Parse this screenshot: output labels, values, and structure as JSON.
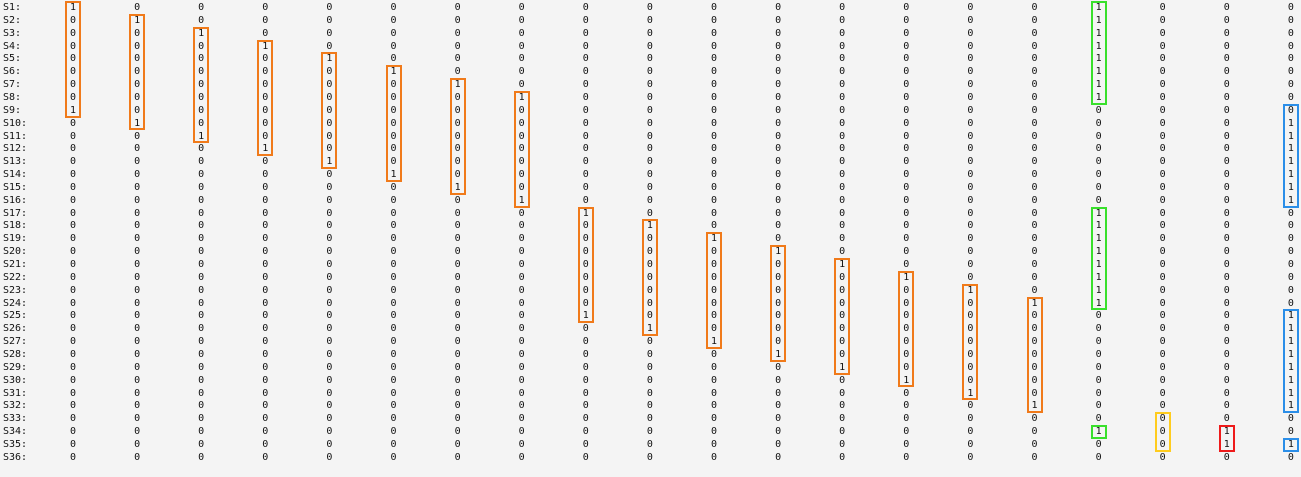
{
  "matrix": {
    "rows": [
      {
        "label": "S1:",
        "values": [
          "1",
          "0",
          "0",
          "0",
          "0",
          "0",
          "0",
          "0",
          "0",
          "0",
          "0",
          "0",
          "0",
          "0",
          "0",
          "0",
          "1",
          "0",
          "0",
          "0"
        ]
      },
      {
        "label": "S2:",
        "values": [
          "0",
          "1",
          "0",
          "0",
          "0",
          "0",
          "0",
          "0",
          "0",
          "0",
          "0",
          "0",
          "0",
          "0",
          "0",
          "0",
          "1",
          "0",
          "0",
          "0"
        ]
      },
      {
        "label": "S3:",
        "values": [
          "0",
          "0",
          "1",
          "0",
          "0",
          "0",
          "0",
          "0",
          "0",
          "0",
          "0",
          "0",
          "0",
          "0",
          "0",
          "0",
          "1",
          "0",
          "0",
          "0"
        ]
      },
      {
        "label": "S4:",
        "values": [
          "0",
          "0",
          "0",
          "1",
          "0",
          "0",
          "0",
          "0",
          "0",
          "0",
          "0",
          "0",
          "0",
          "0",
          "0",
          "0",
          "1",
          "0",
          "0",
          "0"
        ]
      },
      {
        "label": "S5:",
        "values": [
          "0",
          "0",
          "0",
          "0",
          "1",
          "0",
          "0",
          "0",
          "0",
          "0",
          "0",
          "0",
          "0",
          "0",
          "0",
          "0",
          "1",
          "0",
          "0",
          "0"
        ]
      },
      {
        "label": "S6:",
        "values": [
          "0",
          "0",
          "0",
          "0",
          "0",
          "1",
          "0",
          "0",
          "0",
          "0",
          "0",
          "0",
          "0",
          "0",
          "0",
          "0",
          "1",
          "0",
          "0",
          "0"
        ]
      },
      {
        "label": "S7:",
        "values": [
          "0",
          "0",
          "0",
          "0",
          "0",
          "0",
          "1",
          "0",
          "0",
          "0",
          "0",
          "0",
          "0",
          "0",
          "0",
          "0",
          "1",
          "0",
          "0",
          "0"
        ]
      },
      {
        "label": "S8:",
        "values": [
          "0",
          "0",
          "0",
          "0",
          "0",
          "0",
          "0",
          "1",
          "0",
          "0",
          "0",
          "0",
          "0",
          "0",
          "0",
          "0",
          "1",
          "0",
          "0",
          "0"
        ]
      },
      {
        "label": "S9:",
        "values": [
          "1",
          "0",
          "0",
          "0",
          "0",
          "0",
          "0",
          "0",
          "0",
          "0",
          "0",
          "0",
          "0",
          "0",
          "0",
          "0",
          "0",
          "0",
          "0",
          "0"
        ]
      },
      {
        "label": "S10:",
        "values": [
          "0",
          "1",
          "0",
          "0",
          "0",
          "0",
          "0",
          "0",
          "0",
          "0",
          "0",
          "0",
          "0",
          "0",
          "0",
          "0",
          "0",
          "0",
          "0",
          "1"
        ]
      },
      {
        "label": "S11:",
        "values": [
          "0",
          "0",
          "1",
          "0",
          "0",
          "0",
          "0",
          "0",
          "0",
          "0",
          "0",
          "0",
          "0",
          "0",
          "0",
          "0",
          "0",
          "0",
          "0",
          "1"
        ]
      },
      {
        "label": "S12:",
        "values": [
          "0",
          "0",
          "0",
          "1",
          "0",
          "0",
          "0",
          "0",
          "0",
          "0",
          "0",
          "0",
          "0",
          "0",
          "0",
          "0",
          "0",
          "0",
          "0",
          "1"
        ]
      },
      {
        "label": "S13:",
        "values": [
          "0",
          "0",
          "0",
          "0",
          "1",
          "0",
          "0",
          "0",
          "0",
          "0",
          "0",
          "0",
          "0",
          "0",
          "0",
          "0",
          "0",
          "0",
          "0",
          "1"
        ]
      },
      {
        "label": "S14:",
        "values": [
          "0",
          "0",
          "0",
          "0",
          "0",
          "1",
          "0",
          "0",
          "0",
          "0",
          "0",
          "0",
          "0",
          "0",
          "0",
          "0",
          "0",
          "0",
          "0",
          "1"
        ]
      },
      {
        "label": "S15:",
        "values": [
          "0",
          "0",
          "0",
          "0",
          "0",
          "0",
          "1",
          "0",
          "0",
          "0",
          "0",
          "0",
          "0",
          "0",
          "0",
          "0",
          "0",
          "0",
          "0",
          "1"
        ]
      },
      {
        "label": "S16:",
        "values": [
          "0",
          "0",
          "0",
          "0",
          "0",
          "0",
          "0",
          "1",
          "0",
          "0",
          "0",
          "0",
          "0",
          "0",
          "0",
          "0",
          "0",
          "0",
          "0",
          "1"
        ]
      },
      {
        "label": "S17:",
        "values": [
          "0",
          "0",
          "0",
          "0",
          "0",
          "0",
          "0",
          "0",
          "1",
          "0",
          "0",
          "0",
          "0",
          "0",
          "0",
          "0",
          "1",
          "0",
          "0",
          "0"
        ]
      },
      {
        "label": "S18:",
        "values": [
          "0",
          "0",
          "0",
          "0",
          "0",
          "0",
          "0",
          "0",
          "0",
          "1",
          "0",
          "0",
          "0",
          "0",
          "0",
          "0",
          "1",
          "0",
          "0",
          "0"
        ]
      },
      {
        "label": "S19:",
        "values": [
          "0",
          "0",
          "0",
          "0",
          "0",
          "0",
          "0",
          "0",
          "0",
          "0",
          "1",
          "0",
          "0",
          "0",
          "0",
          "0",
          "1",
          "0",
          "0",
          "0"
        ]
      },
      {
        "label": "S20:",
        "values": [
          "0",
          "0",
          "0",
          "0",
          "0",
          "0",
          "0",
          "0",
          "0",
          "0",
          "0",
          "1",
          "0",
          "0",
          "0",
          "0",
          "1",
          "0",
          "0",
          "0"
        ]
      },
      {
        "label": "S21:",
        "values": [
          "0",
          "0",
          "0",
          "0",
          "0",
          "0",
          "0",
          "0",
          "0",
          "0",
          "0",
          "0",
          "1",
          "0",
          "0",
          "0",
          "1",
          "0",
          "0",
          "0"
        ]
      },
      {
        "label": "S22:",
        "values": [
          "0",
          "0",
          "0",
          "0",
          "0",
          "0",
          "0",
          "0",
          "0",
          "0",
          "0",
          "0",
          "0",
          "1",
          "0",
          "0",
          "1",
          "0",
          "0",
          "0"
        ]
      },
      {
        "label": "S23:",
        "values": [
          "0",
          "0",
          "0",
          "0",
          "0",
          "0",
          "0",
          "0",
          "0",
          "0",
          "0",
          "0",
          "0",
          "0",
          "1",
          "0",
          "1",
          "0",
          "0",
          "0"
        ]
      },
      {
        "label": "S24:",
        "values": [
          "0",
          "0",
          "0",
          "0",
          "0",
          "0",
          "0",
          "0",
          "0",
          "0",
          "0",
          "0",
          "0",
          "0",
          "0",
          "1",
          "1",
          "0",
          "0",
          "0"
        ]
      },
      {
        "label": "S25:",
        "values": [
          "0",
          "0",
          "0",
          "0",
          "0",
          "0",
          "0",
          "0",
          "1",
          "0",
          "0",
          "0",
          "0",
          "0",
          "0",
          "0",
          "0",
          "0",
          "0",
          "1"
        ]
      },
      {
        "label": "S26:",
        "values": [
          "0",
          "0",
          "0",
          "0",
          "0",
          "0",
          "0",
          "0",
          "0",
          "1",
          "0",
          "0",
          "0",
          "0",
          "0",
          "0",
          "0",
          "0",
          "0",
          "1"
        ]
      },
      {
        "label": "S27:",
        "values": [
          "0",
          "0",
          "0",
          "0",
          "0",
          "0",
          "0",
          "0",
          "0",
          "0",
          "1",
          "0",
          "0",
          "0",
          "0",
          "0",
          "0",
          "0",
          "0",
          "1"
        ]
      },
      {
        "label": "S28:",
        "values": [
          "0",
          "0",
          "0",
          "0",
          "0",
          "0",
          "0",
          "0",
          "0",
          "0",
          "0",
          "1",
          "0",
          "0",
          "0",
          "0",
          "0",
          "0",
          "0",
          "1"
        ]
      },
      {
        "label": "S29:",
        "values": [
          "0",
          "0",
          "0",
          "0",
          "0",
          "0",
          "0",
          "0",
          "0",
          "0",
          "0",
          "0",
          "1",
          "0",
          "0",
          "0",
          "0",
          "0",
          "0",
          "1"
        ]
      },
      {
        "label": "S30:",
        "values": [
          "0",
          "0",
          "0",
          "0",
          "0",
          "0",
          "0",
          "0",
          "0",
          "0",
          "0",
          "0",
          "0",
          "1",
          "0",
          "0",
          "0",
          "0",
          "0",
          "1"
        ]
      },
      {
        "label": "S31:",
        "values": [
          "0",
          "0",
          "0",
          "0",
          "0",
          "0",
          "0",
          "0",
          "0",
          "0",
          "0",
          "0",
          "0",
          "0",
          "1",
          "0",
          "0",
          "0",
          "0",
          "1"
        ]
      },
      {
        "label": "S32:",
        "values": [
          "0",
          "0",
          "0",
          "0",
          "0",
          "0",
          "0",
          "0",
          "0",
          "0",
          "0",
          "0",
          "0",
          "0",
          "0",
          "1",
          "0",
          "0",
          "0",
          "1"
        ]
      },
      {
        "label": "S33:",
        "values": [
          "0",
          "0",
          "0",
          "0",
          "0",
          "0",
          "0",
          "0",
          "0",
          "0",
          "0",
          "0",
          "0",
          "0",
          "0",
          "0",
          "0",
          "0",
          "0",
          "0"
        ]
      },
      {
        "label": "S34:",
        "values": [
          "0",
          "0",
          "0",
          "0",
          "0",
          "0",
          "0",
          "0",
          "0",
          "0",
          "0",
          "0",
          "0",
          "0",
          "0",
          "0",
          "1",
          "0",
          "1",
          "0"
        ]
      },
      {
        "label": "S35:",
        "values": [
          "0",
          "0",
          "0",
          "0",
          "0",
          "0",
          "0",
          "0",
          "0",
          "0",
          "0",
          "0",
          "0",
          "0",
          "0",
          "0",
          "0",
          "0",
          "1",
          "1"
        ]
      },
      {
        "label": "S36:",
        "values": [
          "0",
          "0",
          "0",
          "0",
          "0",
          "0",
          "0",
          "0",
          "0",
          "0",
          "0",
          "0",
          "0",
          "0",
          "0",
          "0",
          "0",
          "0",
          "0",
          "0"
        ]
      }
    ],
    "highlights": [
      {
        "col": 0,
        "from": 0,
        "to": 8,
        "color": "orange"
      },
      {
        "col": 1,
        "from": 1,
        "to": 9,
        "color": "orange"
      },
      {
        "col": 2,
        "from": 2,
        "to": 10,
        "color": "orange"
      },
      {
        "col": 3,
        "from": 3,
        "to": 11,
        "color": "orange"
      },
      {
        "col": 4,
        "from": 4,
        "to": 12,
        "color": "orange"
      },
      {
        "col": 5,
        "from": 5,
        "to": 13,
        "color": "orange"
      },
      {
        "col": 6,
        "from": 6,
        "to": 14,
        "color": "orange"
      },
      {
        "col": 7,
        "from": 7,
        "to": 15,
        "color": "orange"
      },
      {
        "col": 8,
        "from": 16,
        "to": 24,
        "color": "orange"
      },
      {
        "col": 9,
        "from": 17,
        "to": 25,
        "color": "orange"
      },
      {
        "col": 10,
        "from": 18,
        "to": 26,
        "color": "orange"
      },
      {
        "col": 11,
        "from": 19,
        "to": 27,
        "color": "orange"
      },
      {
        "col": 12,
        "from": 20,
        "to": 28,
        "color": "orange"
      },
      {
        "col": 13,
        "from": 21,
        "to": 29,
        "color": "orange"
      },
      {
        "col": 14,
        "from": 22,
        "to": 30,
        "color": "orange"
      },
      {
        "col": 15,
        "from": 23,
        "to": 31,
        "color": "orange"
      },
      {
        "col": 16,
        "from": 0,
        "to": 7,
        "color": "green"
      },
      {
        "col": 16,
        "from": 16,
        "to": 23,
        "color": "green"
      },
      {
        "col": 16,
        "from": 33,
        "to": 33,
        "color": "green"
      },
      {
        "col": 19,
        "from": 8,
        "to": 15,
        "color": "blue"
      },
      {
        "col": 19,
        "from": 24,
        "to": 31,
        "color": "blue"
      },
      {
        "col": 19,
        "from": 34,
        "to": 34,
        "color": "blue"
      },
      {
        "col": 17,
        "from": 32,
        "to": 34,
        "color": "yellow"
      },
      {
        "col": 18,
        "from": 33,
        "to": 34,
        "color": "red"
      }
    ],
    "colors": {
      "orange": "#f07a1a",
      "green": "#39e02c",
      "blue": "#2b8ee8",
      "yellow": "#ffcc1e",
      "red": "#ee1a1a"
    }
  }
}
